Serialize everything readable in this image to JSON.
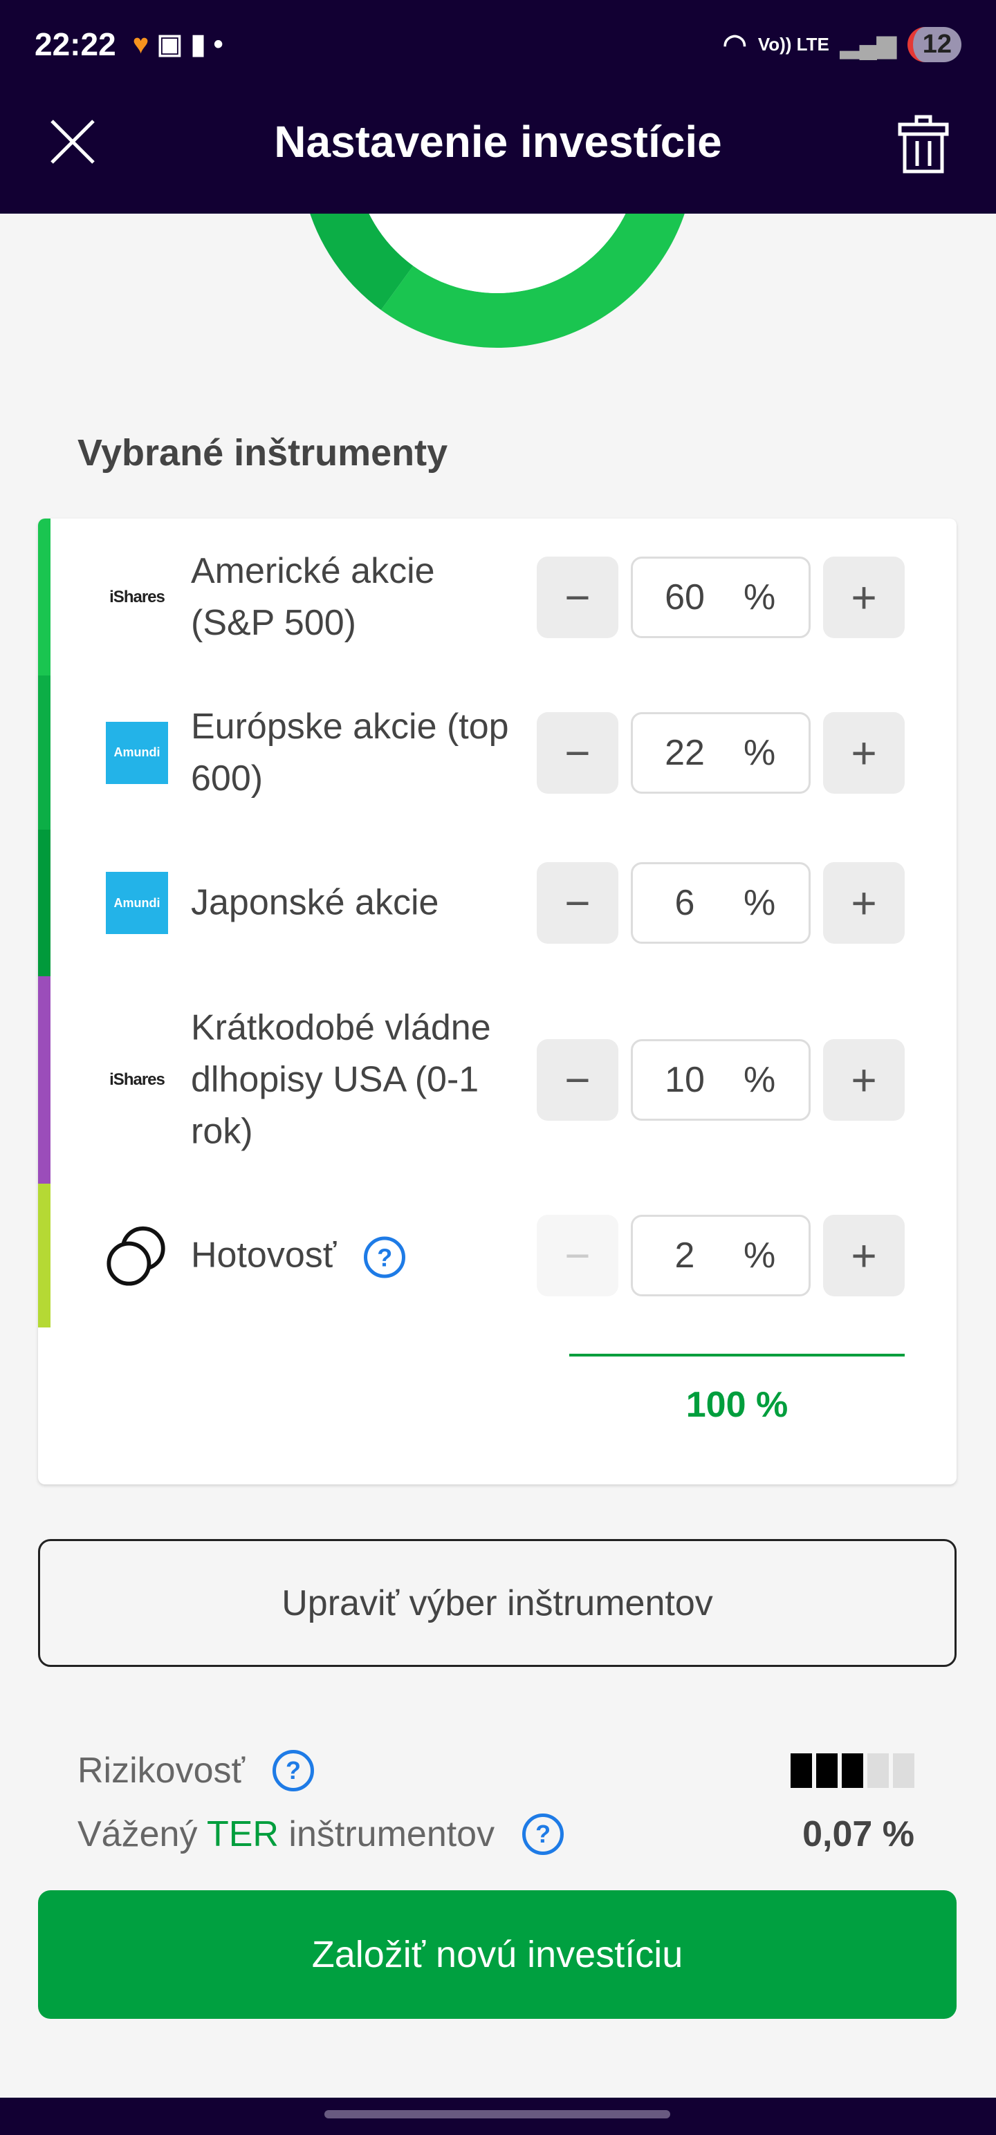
{
  "status_bar": {
    "time": "22:22",
    "network": "Vo)) LTE",
    "notification_count": "12"
  },
  "header": {
    "title": "Nastavenie investície",
    "close_icon": "close-icon",
    "trash_icon": "trash-icon"
  },
  "section_title": "Vybrané inštrumenty",
  "colors": {
    "header": "#120033",
    "accent": "#009e3d",
    "help": "#1e7be6"
  },
  "instruments": [
    {
      "name": "Americké akcie (S&P 500)",
      "logo": "iShares",
      "value": "60",
      "unit": "%",
      "color": "#1ac550",
      "minus_disabled": false
    },
    {
      "name": "Európske akcie (top 600)",
      "logo": "Amundi",
      "value": "22",
      "unit": "%",
      "color": "#0cae46",
      "minus_disabled": false
    },
    {
      "name": "Japonské akcie",
      "logo": "Amundi",
      "value": "6",
      "unit": "%",
      "color": "#019a3b",
      "minus_disabled": false
    },
    {
      "name": "Krátkodobé vládne dlhopisy USA (0-1 rok)",
      "logo": "iShares",
      "value": "10",
      "unit": "%",
      "color": "#9b4dba",
      "minus_disabled": false
    },
    {
      "name": "Hotovosť",
      "logo": "coins",
      "value": "2",
      "unit": "%",
      "color": "#b5d934",
      "minus_disabled": true
    }
  ],
  "total": "100 %",
  "edit_button": "Upraviť výber inštrumentov",
  "risk": {
    "label": "Rizikovosť",
    "level": 3,
    "max": 5
  },
  "ter": {
    "label_pre": "Vážený",
    "label_ter": "TER",
    "label_post": "inštrumentov",
    "value": "0,07 %"
  },
  "cta": "Založiť novú investíciu",
  "buttons": {
    "minus": "−",
    "plus": "+",
    "help": "?"
  }
}
